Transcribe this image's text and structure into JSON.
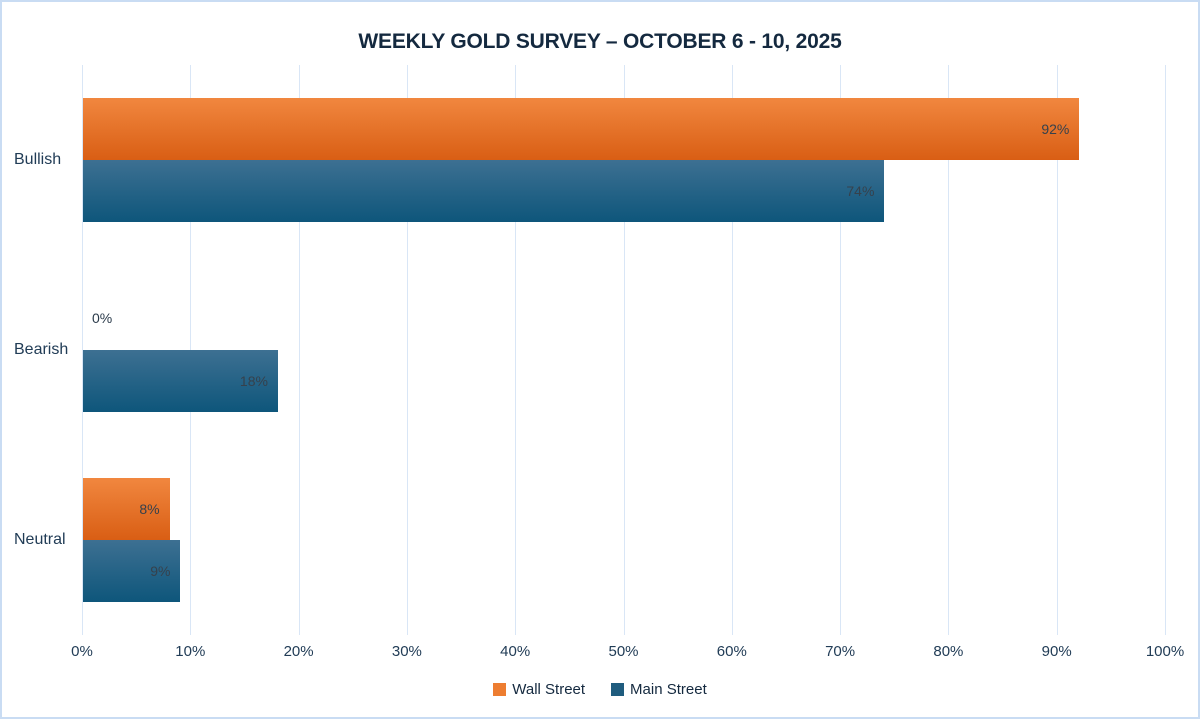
{
  "title": "WEEKLY GOLD SURVEY – OCTOBER 6 - 10, 2025",
  "chart_data": {
    "type": "bar",
    "orientation": "horizontal",
    "title": "WEEKLY GOLD SURVEY – OCTOBER 6 - 10, 2025",
    "categories": [
      "Bullish",
      "Bearish",
      "Neutral"
    ],
    "series": [
      {
        "name": "Wall Street",
        "values": [
          92,
          0,
          8
        ],
        "legend_color": "#ed7d31",
        "gradient_top": "#f1873f",
        "gradient_bottom": "#d95e14"
      },
      {
        "name": "Main Street",
        "values": [
          74,
          18,
          9
        ],
        "legend_color": "#1f5c7e",
        "gradient_top": "#3d7092",
        "gradient_bottom": "#0e567b"
      }
    ],
    "data_labels": [
      [
        "92%",
        "0%",
        "8%"
      ],
      [
        "74%",
        "18%",
        "9%"
      ]
    ],
    "xlim": [
      0,
      100
    ],
    "x_ticks": [
      "0%",
      "10%",
      "20%",
      "30%",
      "40%",
      "50%",
      "60%",
      "70%",
      "80%",
      "90%",
      "100%"
    ],
    "grid": true,
    "legend_position": "bottom"
  },
  "colors": {
    "frame_border": "#c9dcf3",
    "gridline": "#d9e6f6",
    "title_text": "#14293f",
    "axis_text": "#213c56",
    "data_label_text": "#36414c"
  }
}
